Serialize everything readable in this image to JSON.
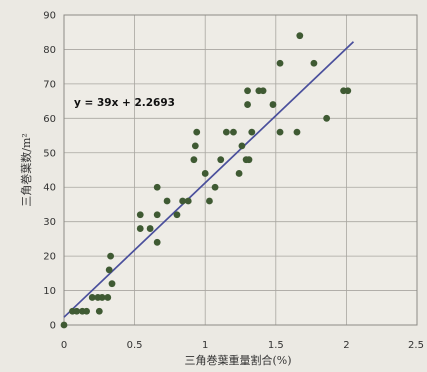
{
  "chart_data": {
    "type": "scatter",
    "title": "",
    "xlabel": "三角巻葉重量割合(%)",
    "ylabel": "三角巻葉数/m²",
    "xlim": [
      0,
      2.5
    ],
    "ylim": [
      0,
      90
    ],
    "x_ticks": [
      "0",
      "0.5",
      "1",
      "1.5",
      "2",
      "2.5"
    ],
    "y_ticks": [
      "0",
      "10",
      "20",
      "30",
      "40",
      "50",
      "60",
      "70",
      "80",
      "90"
    ],
    "grid": true,
    "x": [
      0,
      0.06,
      0.09,
      0.13,
      0.16,
      0.2,
      0.24,
      0.27,
      0.31,
      0.25,
      0.32,
      0.33,
      0.34,
      0.54,
      0.54,
      0.61,
      0.66,
      0.66,
      0.66,
      0.73,
      0.8,
      0.84,
      0.88,
      0.92,
      0.93,
      0.94,
      1.0,
      1.03,
      1.07,
      1.11,
      1.15,
      1.2,
      1.24,
      1.26,
      1.29,
      1.3,
      1.3,
      1.31,
      1.33,
      1.38,
      1.41,
      1.48,
      1.53,
      1.53,
      1.65,
      1.67,
      1.77,
      1.86,
      1.98,
      2.01
    ],
    "y": [
      0,
      4,
      4,
      4,
      4,
      8,
      8,
      8,
      8,
      4,
      16,
      20,
      12,
      28,
      32,
      28,
      24,
      32,
      40,
      36,
      32,
      36,
      36,
      48,
      52,
      56,
      44,
      36,
      40,
      48,
      56,
      56,
      44,
      52,
      48,
      64,
      68,
      48,
      56,
      68,
      68,
      64,
      76,
      56,
      56,
      84,
      76,
      60,
      68,
      68
    ],
    "trendline": {
      "slope": 39,
      "intercept": 2.2693,
      "x_range": [
        0,
        2.05
      ],
      "label": "y = 39x + 2.2693"
    },
    "colors": {
      "points": "#3f5a33",
      "trendline": "#4a4f9c",
      "grid": "#a8a6a0",
      "frame": "#8c8a85",
      "plot_background": "#eeece6"
    }
  }
}
